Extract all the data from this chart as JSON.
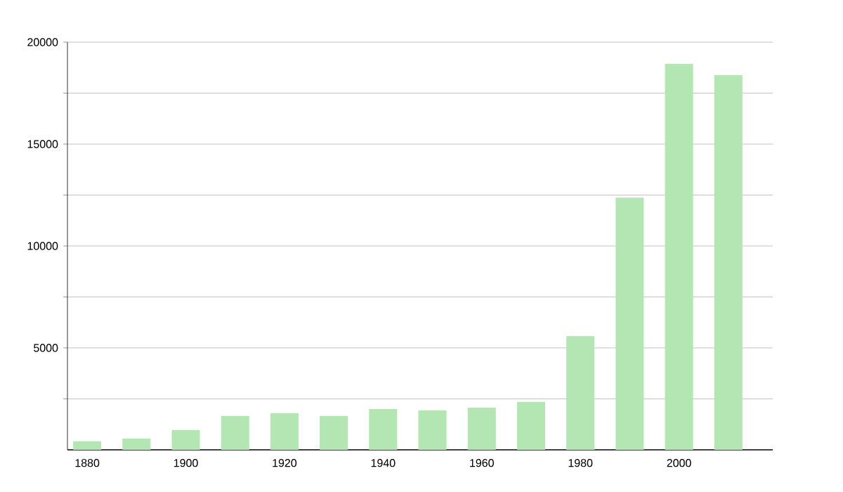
{
  "chart_data": {
    "type": "bar",
    "x": [
      1880,
      1890,
      1900,
      1910,
      1920,
      1930,
      1940,
      1950,
      1960,
      1970,
      1980,
      1990,
      2000,
      2010
    ],
    "values": [
      420,
      550,
      970,
      1660,
      1800,
      1660,
      2000,
      1940,
      2070,
      2350,
      5580,
      12370,
      18940,
      18390
    ],
    "color": "#b3e6b3",
    "xlim": [
      1876,
      2019
    ],
    "xticks": [
      1880,
      1900,
      1920,
      1940,
      1960,
      1980,
      2000
    ],
    "ylim": [
      0,
      20000
    ],
    "yticks": [
      {
        "value": 2500,
        "label": null
      },
      5000,
      {
        "value": 7500,
        "label": null
      },
      10000,
      {
        "value": 12500,
        "label": null
      },
      15000,
      {
        "value": 17500,
        "label": null
      },
      20000
    ],
    "grid": "y"
  }
}
